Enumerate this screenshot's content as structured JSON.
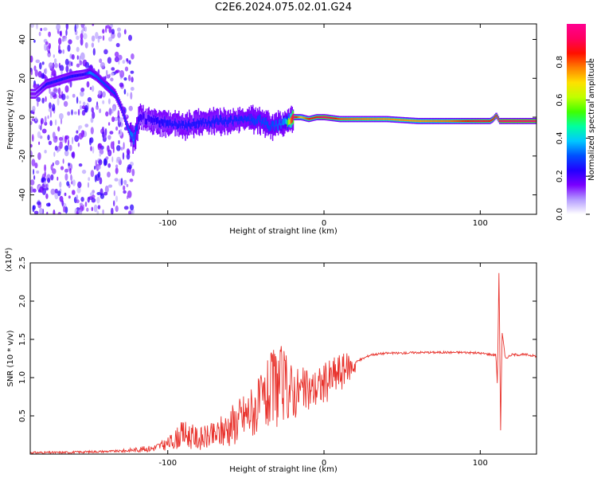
{
  "title": "C2E6.2024.075.02.01.G24",
  "chart_data": [
    {
      "type": "heatmap",
      "xlabel": "Height of straight line (km)",
      "ylabel": "Frequency (Hz)",
      "xlim": [
        -188,
        136
      ],
      "ylim": [
        -50,
        48
      ],
      "x_ticks": [
        -100,
        0,
        100
      ],
      "y_ticks": [
        -40,
        -20,
        0,
        20,
        40
      ],
      "colorbar": {
        "label": "Normalized spectral amplitude",
        "range": [
          0,
          1
        ],
        "ticks": [
          0.0,
          0.2,
          0.4,
          0.6,
          0.8
        ],
        "colormap": [
          "#ffffff",
          "#b49cff",
          "#7a00ff",
          "#2200ff",
          "#0050ff",
          "#00c8ff",
          "#00ffa0",
          "#40ff00",
          "#c0ff00",
          "#ffe000",
          "#ff8000",
          "#ff1000",
          "#ff0060",
          "#ff0090"
        ]
      },
      "ridge": {
        "x": [
          -185,
          -178,
          -170,
          -162,
          -154,
          -150,
          -146,
          -142,
          -138,
          -134,
          -130,
          -126,
          -122,
          -118,
          -110,
          -100,
          -90,
          -80,
          -70,
          -60,
          -50,
          -40,
          -35,
          -30,
          -25,
          -20,
          -15,
          -10,
          -5,
          0,
          10,
          20,
          40,
          60,
          80,
          100,
          106,
          108,
          110,
          112,
          114,
          120,
          136
        ],
        "y": [
          12,
          17,
          19,
          21,
          22,
          23,
          21,
          18,
          15,
          12,
          5,
          -5,
          -12,
          0,
          -2,
          -3,
          -4,
          -3,
          -2,
          -2,
          -1,
          -2,
          -5,
          -4,
          -3,
          0,
          0,
          -1,
          0,
          0,
          -1,
          -1,
          -1,
          -2,
          -2,
          -2,
          -2,
          -1,
          1,
          -2,
          -2,
          -2,
          -2
        ],
        "amplitude": [
          0.15,
          0.25,
          0.25,
          0.25,
          0.22,
          0.35,
          0.32,
          0.3,
          0.3,
          0.28,
          0.25,
          0.32,
          0.35,
          0.2,
          0.22,
          0.25,
          0.25,
          0.25,
          0.26,
          0.26,
          0.28,
          0.3,
          0.3,
          0.32,
          0.35,
          0.95,
          0.7,
          0.85,
          0.85,
          0.95,
          0.8,
          0.78,
          0.75,
          0.75,
          0.78,
          0.9,
          0.85,
          0.85,
          0.9,
          0.92,
          0.95,
          0.95,
          0.95
        ]
      }
    },
    {
      "type": "line",
      "xlabel": "Height of straight line (km)",
      "ylabel": "SNR (10 * v/v)",
      "y_multiplier": "(x10⁴)",
      "xlim": [
        -188,
        136
      ],
      "ylim": [
        0,
        2.5
      ],
      "x_ticks": [
        -100,
        0,
        100
      ],
      "y_ticks": [
        0.5,
        1.0,
        1.5,
        2.0,
        2.5
      ],
      "series": [
        {
          "color": "#e8322c",
          "x": [
            -188,
            -170,
            -150,
            -130,
            -120,
            -110,
            -105,
            -100,
            -95,
            -90,
            -85,
            -80,
            -75,
            -70,
            -65,
            -60,
            -55,
            -50,
            -45,
            -40,
            -35,
            -30,
            -28,
            -25,
            -22,
            -20,
            -15,
            -10,
            -5,
            0,
            5,
            10,
            15,
            20,
            25,
            30,
            40,
            50,
            60,
            70,
            80,
            90,
            100,
            108,
            110,
            111,
            112,
            113,
            114,
            116,
            120,
            130,
            136
          ],
          "y": [
            0.02,
            0.02,
            0.03,
            0.04,
            0.05,
            0.08,
            0.12,
            0.18,
            0.22,
            0.28,
            0.25,
            0.2,
            0.15,
            0.2,
            0.28,
            0.3,
            0.35,
            0.45,
            0.55,
            0.7,
            0.8,
            0.85,
            1.2,
            0.75,
            0.75,
            0.8,
            0.85,
            0.8,
            0.85,
            0.9,
            0.95,
            1.05,
            1.15,
            1.2,
            1.25,
            1.3,
            1.32,
            1.32,
            1.33,
            1.33,
            1.33,
            1.33,
            1.32,
            1.3,
            1.3,
            0.9,
            2.45,
            0.3,
            1.6,
            1.25,
            1.3,
            1.3,
            1.28
          ],
          "envelope_x": [
            -130,
            -110,
            -100,
            -90,
            -80,
            -70,
            -60,
            -50,
            -40,
            -30,
            -20,
            -10,
            0,
            10,
            20
          ],
          "envelope_lo": [
            0.02,
            0.03,
            0.05,
            0.08,
            0.05,
            0.06,
            0.1,
            0.18,
            0.25,
            0.35,
            0.45,
            0.55,
            0.65,
            0.8,
            1.05
          ],
          "envelope_hi": [
            0.06,
            0.12,
            0.22,
            0.45,
            0.35,
            0.42,
            0.65,
            0.85,
            1.05,
            1.5,
            1.2,
            1.1,
            1.2,
            1.35,
            1.3
          ]
        }
      ]
    }
  ]
}
